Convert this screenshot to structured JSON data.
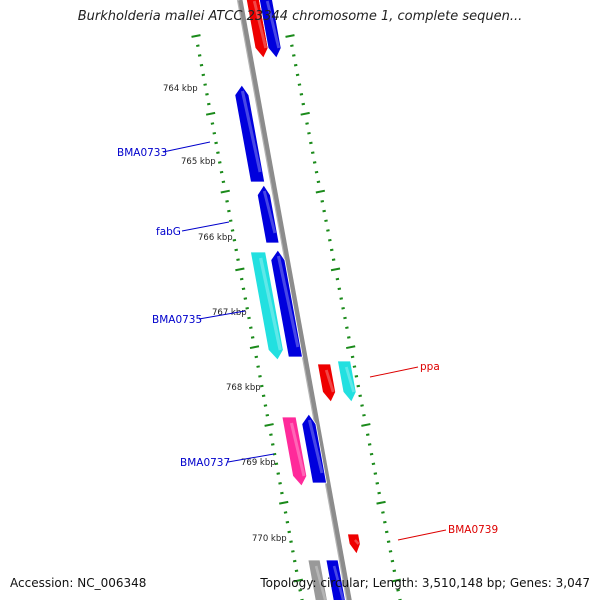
{
  "title": "Burkholderia mallei ATCC 23344 chromosome 1, complete sequen...",
  "accession": "Accession: NC_006348",
  "summary": "Topology: circular; Length: 3,510,148 bp; Genes: 3,047",
  "kbp_labels": [
    "764 kbp",
    "765 kbp",
    "766 kbp",
    "767 kbp",
    "768 kbp",
    "769 kbp",
    "770 kbp"
  ],
  "gene_labels": [
    {
      "name": "BMA0733",
      "color": "#0000cc",
      "side": "left"
    },
    {
      "name": "fabG",
      "color": "#0000cc",
      "side": "left"
    },
    {
      "name": "BMA0735",
      "color": "#0000cc",
      "side": "left"
    },
    {
      "name": "BMA0737",
      "color": "#0000cc",
      "side": "left"
    },
    {
      "name": "ppa",
      "color": "#dd0000",
      "side": "right"
    },
    {
      "name": "BMA0739",
      "color": "#dd0000",
      "side": "right"
    }
  ],
  "colors": {
    "backbone": "#8c8c8c",
    "tick": "#1a8a1a",
    "blue": "#0000dd",
    "cyan": "#22e0e0",
    "red": "#ee0000",
    "pink": "#ff2a9a",
    "label_blue": "#0000cc",
    "label_red": "#dd0000"
  }
}
